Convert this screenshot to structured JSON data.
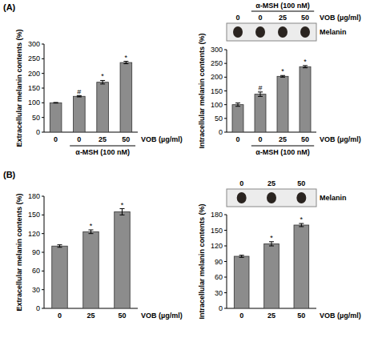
{
  "chart_data": [
    {
      "type": "bar",
      "panel": "(A)",
      "y_label": "Extracellular melanin contents (%)",
      "x_label": "VOB (µg/ml)",
      "categories": [
        "0",
        "0",
        "25",
        "50"
      ],
      "group": {
        "label": "α-MSH (100 nM)",
        "from": 1,
        "to": 3
      },
      "values": [
        100,
        122,
        170,
        237
      ],
      "errors": [
        1,
        2,
        6,
        4
      ],
      "annotations": [
        null,
        "#",
        "*",
        "*"
      ],
      "ylim": [
        0,
        300
      ],
      "yticks": [
        0,
        50,
        100,
        150,
        200,
        250,
        300
      ],
      "grid": false,
      "color": "#8c8c8c"
    },
    {
      "type": "bar",
      "y_label": "Intracellular melanin contents (%)",
      "x_label": "VOB (µg/ml)",
      "categories": [
        "0",
        "0",
        "25",
        "50"
      ],
      "group": {
        "label": "α-MSH (100 nM)",
        "from": 1,
        "to": 3
      },
      "values": [
        100,
        138,
        203,
        238
      ],
      "errors": [
        6,
        8,
        3,
        4
      ],
      "annotations": [
        null,
        "#",
        "*",
        "*"
      ],
      "ylim": [
        0,
        300
      ],
      "yticks": [
        0,
        50,
        100,
        150,
        200,
        250,
        300
      ],
      "grid": false,
      "color": "#8c8c8c",
      "blot": {
        "label": "Melanin",
        "lanes": [
          "0",
          "0",
          "25",
          "50"
        ],
        "x_label": "VOB (µg/ml)",
        "group": {
          "label": "α-MSH (100 nM)",
          "from": 1,
          "to": 3
        }
      }
    },
    {
      "type": "bar",
      "panel": "(B)",
      "y_label": "Extracellular melanin contents (%)",
      "x_label": "VOB (µg/ml)",
      "categories": [
        "0",
        "25",
        "50"
      ],
      "values": [
        100,
        123,
        155
      ],
      "errors": [
        2,
        3,
        5
      ],
      "annotations": [
        null,
        "*",
        "*"
      ],
      "ylim": [
        0,
        180
      ],
      "yticks": [
        0,
        30,
        60,
        90,
        120,
        150,
        180
      ],
      "grid": false,
      "color": "#8c8c8c"
    },
    {
      "type": "bar",
      "y_label": "Intracellular melanin contents (%)",
      "x_label": "VOB (µg/ml)",
      "categories": [
        "0",
        "25",
        "50"
      ],
      "values": [
        100,
        124,
        160
      ],
      "errors": [
        2,
        4,
        3
      ],
      "annotations": [
        null,
        "*",
        "*"
      ],
      "ylim": [
        0,
        180
      ],
      "yticks": [
        0,
        30,
        60,
        90,
        120,
        150,
        180
      ],
      "grid": false,
      "color": "#8c8c8c",
      "blot": {
        "label": "Melanin",
        "lanes": [
          "0",
          "25",
          "50"
        ]
      }
    }
  ]
}
